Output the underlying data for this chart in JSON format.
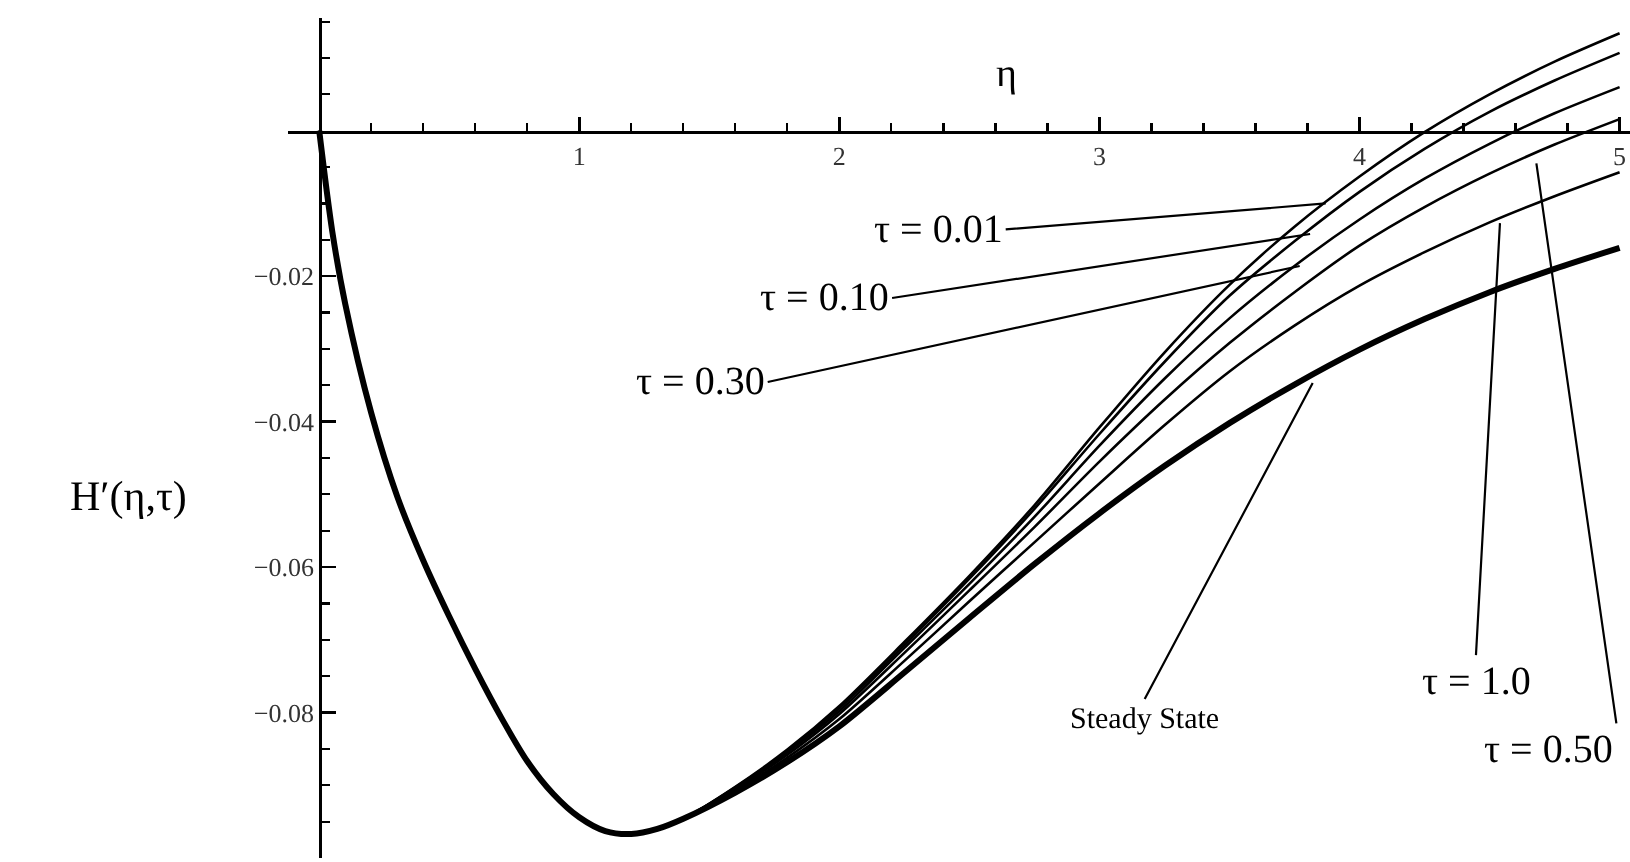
{
  "chart_data": {
    "type": "line",
    "xlabel": "η",
    "ylabel": "H′(η,τ)",
    "x": [
      0,
      0.05,
      0.1,
      0.2,
      0.3,
      0.4,
      0.5,
      0.6,
      0.7,
      0.8,
      0.9,
      1.0,
      1.1,
      1.2,
      1.3,
      1.4,
      1.6,
      1.8,
      2.0,
      2.25,
      2.5,
      2.75,
      3.0,
      3.25,
      3.5,
      3.75,
      4.0,
      4.25,
      4.5,
      4.75,
      5.0
    ],
    "series": [
      {
        "color": "#000000",
        "values": [
          0,
          -0.0138,
          -0.0238,
          -0.0388,
          -0.0503,
          -0.0591,
          -0.0668,
          -0.074,
          -0.0807,
          -0.0867,
          -0.0912,
          -0.0944,
          -0.0963,
          -0.0967,
          -0.096,
          -0.0946,
          -0.0902,
          -0.0851,
          -0.0791,
          -0.0703,
          -0.0612,
          -0.0515,
          -0.0408,
          -0.0305,
          -0.0212,
          -0.0132,
          -0.0063,
          -0.0002,
          0.005,
          0.0095,
          0.0134
        ]
      },
      {
        "color": "#000000",
        "values": [
          0,
          -0.0138,
          -0.0238,
          -0.0388,
          -0.0503,
          -0.0591,
          -0.0668,
          -0.074,
          -0.0807,
          -0.0867,
          -0.0912,
          -0.0944,
          -0.0963,
          -0.0967,
          -0.096,
          -0.0946,
          -0.0903,
          -0.0853,
          -0.0794,
          -0.0707,
          -0.0616,
          -0.052,
          -0.0417,
          -0.0318,
          -0.0227,
          -0.0152,
          -0.0084,
          -0.0025,
          0.0026,
          0.0069,
          0.0107
        ]
      },
      {
        "color": "#000000",
        "values": [
          0,
          -0.0138,
          -0.0238,
          -0.0388,
          -0.0503,
          -0.0591,
          -0.0668,
          -0.074,
          -0.0807,
          -0.0867,
          -0.0912,
          -0.0944,
          -0.0963,
          -0.0967,
          -0.096,
          -0.0946,
          -0.0904,
          -0.0855,
          -0.0798,
          -0.0711,
          -0.0623,
          -0.0531,
          -0.0433,
          -0.0341,
          -0.0258,
          -0.0186,
          -0.0122,
          -0.0066,
          -0.0018,
          0.0024,
          0.006
        ]
      },
      {
        "color": "#000000",
        "values": [
          0,
          -0.0138,
          -0.0238,
          -0.0388,
          -0.0503,
          -0.0591,
          -0.0668,
          -0.074,
          -0.0807,
          -0.0867,
          -0.0912,
          -0.0944,
          -0.0963,
          -0.0967,
          -0.096,
          -0.0946,
          -0.0905,
          -0.0858,
          -0.0802,
          -0.0718,
          -0.0632,
          -0.0545,
          -0.0455,
          -0.037,
          -0.0292,
          -0.0222,
          -0.0158,
          -0.0105,
          -0.0059,
          -0.0019,
          0.0016
        ]
      },
      {
        "color": "#000000",
        "values": [
          0,
          -0.0138,
          -0.0238,
          -0.0388,
          -0.0503,
          -0.0591,
          -0.0668,
          -0.074,
          -0.0807,
          -0.0867,
          -0.0912,
          -0.0944,
          -0.0963,
          -0.0967,
          -0.096,
          -0.0946,
          -0.0907,
          -0.0862,
          -0.0809,
          -0.0729,
          -0.0647,
          -0.0566,
          -0.0485,
          -0.0405,
          -0.0331,
          -0.0268,
          -0.0213,
          -0.0167,
          -0.0126,
          -0.009,
          -0.0057
        ]
      },
      {
        "color": "#000000",
        "values": [
          0,
          -0.0138,
          -0.0238,
          -0.0388,
          -0.0503,
          -0.0591,
          -0.0668,
          -0.074,
          -0.0807,
          -0.0867,
          -0.0912,
          -0.0944,
          -0.0963,
          -0.0967,
          -0.096,
          -0.0946,
          -0.091,
          -0.0868,
          -0.0819,
          -0.0745,
          -0.067,
          -0.0596,
          -0.0526,
          -0.0461,
          -0.0402,
          -0.0349,
          -0.0301,
          -0.0259,
          -0.0222,
          -0.019,
          -0.0161
        ]
      }
    ],
    "xlim": [
      -0.12,
      5.04
    ],
    "xticks": [
      {
        "value": 0.2,
        "label": null
      },
      {
        "value": 0.4,
        "label": null
      },
      {
        "value": 0.6,
        "label": null
      },
      {
        "value": 0.8,
        "label": null
      },
      1,
      {
        "value": 1.2,
        "label": null
      },
      {
        "value": 1.4,
        "label": null
      },
      {
        "value": 1.6,
        "label": null
      },
      {
        "value": 1.8,
        "label": null
      },
      2,
      {
        "value": 2.2,
        "label": null
      },
      {
        "value": 2.4,
        "label": null
      },
      {
        "value": 2.6,
        "label": null
      },
      {
        "value": 2.8,
        "label": null
      },
      3,
      {
        "value": 3.2,
        "label": null
      },
      {
        "value": 3.4,
        "label": null
      },
      {
        "value": 3.6,
        "label": null
      },
      {
        "value": 3.8,
        "label": null
      },
      4,
      {
        "value": 4.2,
        "label": null
      },
      {
        "value": 4.4,
        "label": null
      },
      {
        "value": 4.6,
        "label": null
      },
      {
        "value": 4.8,
        "label": null
      },
      5
    ],
    "ylim": [
      -0.1,
      0.0155
    ],
    "yticks": [
      {
        "value": 0.015,
        "label": null
      },
      {
        "value": 0.01,
        "label": null
      },
      {
        "value": 0.005,
        "label": null
      },
      {
        "value": -0.005,
        "label": null
      },
      {
        "value": -0.01,
        "label": null
      },
      {
        "value": -0.015,
        "label": null
      },
      {
        "value": -0.02,
        "label": "−0.02"
      },
      {
        "value": -0.025,
        "label": null
      },
      {
        "value": -0.03,
        "label": null
      },
      {
        "value": -0.035,
        "label": null
      },
      {
        "value": -0.04,
        "label": "−0.04"
      },
      {
        "value": -0.045,
        "label": null
      },
      {
        "value": -0.05,
        "label": null
      },
      {
        "value": -0.055,
        "label": null
      },
      {
        "value": -0.06,
        "label": "−0.06"
      },
      {
        "value": -0.065,
        "label": null
      },
      {
        "value": -0.07,
        "label": null
      },
      {
        "value": -0.075,
        "label": null
      },
      {
        "value": -0.08,
        "label": "−0.08"
      },
      {
        "value": -0.085,
        "label": null
      },
      {
        "value": -0.09,
        "label": null
      },
      {
        "value": -0.095,
        "label": null
      }
    ],
    "annotations": [
      {
        "text": "τ = 0.01",
        "x": 3.87,
        "y": -0.01
      },
      {
        "text": "τ = 0.10",
        "x": 3.81,
        "y": -0.0142
      },
      {
        "text": "τ = 0.30",
        "x": 3.77,
        "y": -0.0186
      },
      {
        "text": "Steady State",
        "x": 3.82,
        "y": -0.0347
      },
      {
        "text": "τ = 1.0",
        "x": 4.54,
        "y": -0.0127
      },
      {
        "text": "τ = 0.50",
        "x": 4.68,
        "y": -0.0045
      }
    ]
  }
}
